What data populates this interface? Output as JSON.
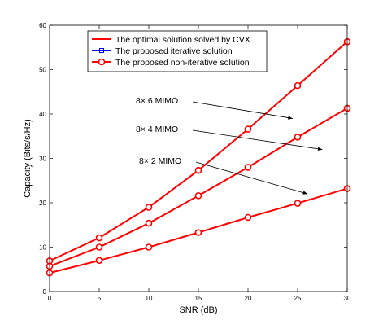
{
  "chart_data": {
    "type": "line",
    "xlabel": "SNR (dB)",
    "ylabel": "Capacity (Bits/s/Hz)",
    "xlim": [
      0,
      30
    ],
    "ylim": [
      0,
      60
    ],
    "xticks": [
      "0",
      "5",
      "10",
      "15",
      "20",
      "25",
      "30"
    ],
    "yticks": [
      "0",
      "10",
      "20",
      "30",
      "40",
      "50",
      "60"
    ],
    "grid": false,
    "legend": {
      "placement": "top-left",
      "entries": [
        {
          "label": "The optimal solution solved by CVX",
          "color": "#ff0000",
          "marker": "none"
        },
        {
          "label": "The proposed iterative solution",
          "color": "#0000ff",
          "marker": "square"
        },
        {
          "label": "The proposed non-iterative solution",
          "color": "#ff0000",
          "marker": "circle"
        }
      ]
    },
    "x": [
      0,
      5,
      10,
      15,
      20,
      25,
      30
    ],
    "groups": [
      {
        "label": "8× 6 MIMO",
        "values": [
          6.9,
          12.1,
          19.0,
          27.3,
          36.6,
          46.4,
          56.3
        ]
      },
      {
        "label": "8× 4 MIMO",
        "values": [
          5.7,
          10.0,
          15.4,
          21.6,
          28.0,
          34.8,
          41.3
        ]
      },
      {
        "label": "8× 2 MIMO",
        "values": [
          4.2,
          7.0,
          10.0,
          13.3,
          16.7,
          19.9,
          23.2
        ]
      }
    ],
    "annotations": [
      {
        "text": "8× 6 MIMO",
        "target": {
          "x": 24.5,
          "y": 39
        }
      },
      {
        "text": "8× 4 MIMO",
        "target": {
          "x": 27.5,
          "y": 32
        }
      },
      {
        "text": "8× 2 MIMO",
        "target": {
          "x": 26.0,
          "y": 22
        }
      }
    ],
    "colors": {
      "cvx": "#ff0000",
      "iterative": "#0000ff",
      "noniterative": "#ff0000"
    }
  }
}
